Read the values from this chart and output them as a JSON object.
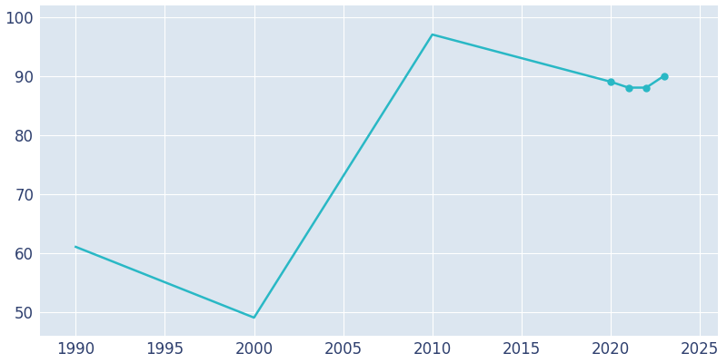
{
  "years": [
    1990,
    2000,
    2010,
    2020,
    2021,
    2022,
    2023
  ],
  "population": [
    61,
    49,
    97,
    89,
    88,
    88,
    90
  ],
  "line_color": "#29b8c5",
  "marker_years": [
    2020,
    2021,
    2022,
    2023
  ],
  "marker_color": "#29b8c5",
  "fig_bg_color": "#ffffff",
  "plot_bg_color": "#dce6f0",
  "grid_color": "#ffffff",
  "tick_color": "#2e3f6e",
  "xlim": [
    1988,
    2026
  ],
  "ylim": [
    46,
    102
  ],
  "xticks": [
    1990,
    1995,
    2000,
    2005,
    2010,
    2015,
    2020,
    2025
  ],
  "yticks": [
    50,
    60,
    70,
    80,
    90,
    100
  ],
  "tick_fontsize": 12,
  "linewidth": 1.8,
  "markersize": 5
}
